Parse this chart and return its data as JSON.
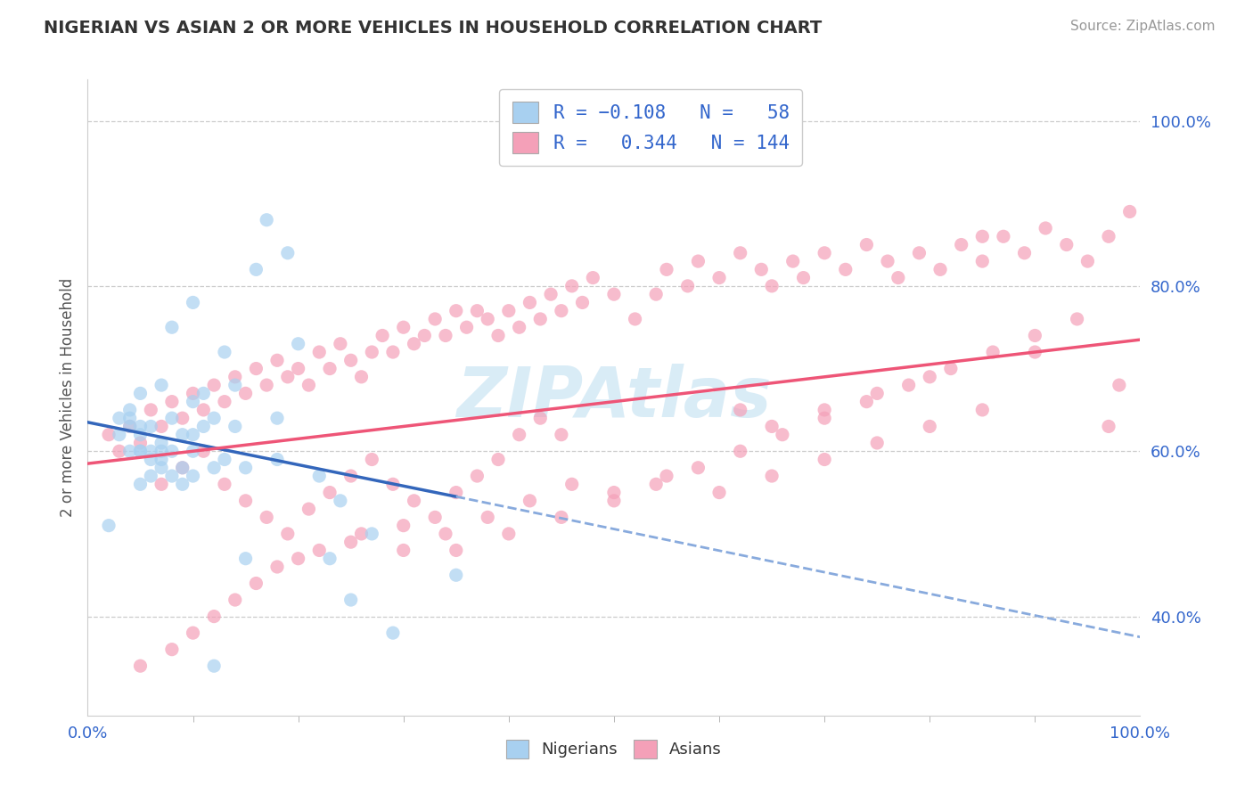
{
  "title": "NIGERIAN VS ASIAN 2 OR MORE VEHICLES IN HOUSEHOLD CORRELATION CHART",
  "source_text": "Source: ZipAtlas.com",
  "ylabel": "2 or more Vehicles in Household",
  "xlim": [
    0.0,
    1.0
  ],
  "ylim": [
    0.28,
    1.05
  ],
  "xtick_labels": [
    "0.0%",
    "100.0%"
  ],
  "ytick_labels": [
    "40.0%",
    "60.0%",
    "80.0%",
    "100.0%"
  ],
  "ytick_positions": [
    0.4,
    0.6,
    0.8,
    1.0
  ],
  "color_nigerian": "#A8D0F0",
  "color_asian": "#F4A0B8",
  "color_nigerian_line_solid": "#3366BB",
  "color_nigerian_line_dash": "#88AADD",
  "color_asian_line": "#EE5577",
  "watermark_color": "#BBDDF0",
  "background_color": "#FFFFFF",
  "grid_color": "#CCCCCC",
  "title_color": "#333333",
  "axis_label_color": "#555555",
  "tick_color": "#3366CC",
  "nigerian_line_x0": 0.0,
  "nigerian_line_y0": 0.635,
  "nigerian_line_x1": 0.35,
  "nigerian_line_y1": 0.545,
  "nigerian_line_dash_x0": 0.35,
  "nigerian_line_dash_y0": 0.545,
  "nigerian_line_dash_x1": 1.0,
  "nigerian_line_dash_y1": 0.375,
  "asian_line_x0": 0.0,
  "asian_line_y0": 0.585,
  "asian_line_x1": 1.0,
  "asian_line_y1": 0.735,
  "nig_x": [
    0.02,
    0.03,
    0.03,
    0.04,
    0.04,
    0.04,
    0.04,
    0.05,
    0.05,
    0.05,
    0.05,
    0.05,
    0.05,
    0.06,
    0.06,
    0.06,
    0.06,
    0.07,
    0.07,
    0.07,
    0.07,
    0.07,
    0.08,
    0.08,
    0.08,
    0.09,
    0.09,
    0.09,
    0.1,
    0.1,
    0.1,
    0.1,
    0.11,
    0.11,
    0.12,
    0.12,
    0.13,
    0.13,
    0.14,
    0.14,
    0.15,
    0.15,
    0.16,
    0.17,
    0.18,
    0.18,
    0.19,
    0.2,
    0.22,
    0.23,
    0.24,
    0.25,
    0.27,
    0.29,
    0.35,
    0.08,
    0.1,
    0.12
  ],
  "nig_y": [
    0.51,
    0.62,
    0.64,
    0.6,
    0.63,
    0.64,
    0.65,
    0.56,
    0.6,
    0.6,
    0.62,
    0.63,
    0.67,
    0.57,
    0.59,
    0.6,
    0.63,
    0.58,
    0.59,
    0.6,
    0.61,
    0.68,
    0.57,
    0.6,
    0.64,
    0.56,
    0.58,
    0.62,
    0.57,
    0.6,
    0.62,
    0.66,
    0.63,
    0.67,
    0.58,
    0.64,
    0.59,
    0.72,
    0.63,
    0.68,
    0.47,
    0.58,
    0.82,
    0.88,
    0.59,
    0.64,
    0.84,
    0.73,
    0.57,
    0.47,
    0.54,
    0.42,
    0.5,
    0.38,
    0.45,
    0.75,
    0.78,
    0.34
  ],
  "asi_x": [
    0.02,
    0.03,
    0.04,
    0.05,
    0.06,
    0.07,
    0.08,
    0.09,
    0.1,
    0.11,
    0.12,
    0.13,
    0.14,
    0.15,
    0.16,
    0.17,
    0.18,
    0.19,
    0.2,
    0.21,
    0.22,
    0.23,
    0.24,
    0.25,
    0.26,
    0.27,
    0.28,
    0.29,
    0.3,
    0.31,
    0.32,
    0.33,
    0.34,
    0.35,
    0.36,
    0.37,
    0.38,
    0.39,
    0.4,
    0.41,
    0.42,
    0.43,
    0.44,
    0.45,
    0.46,
    0.47,
    0.48,
    0.5,
    0.52,
    0.54,
    0.55,
    0.57,
    0.58,
    0.6,
    0.62,
    0.64,
    0.65,
    0.67,
    0.68,
    0.7,
    0.72,
    0.74,
    0.76,
    0.77,
    0.79,
    0.81,
    0.83,
    0.85,
    0.87,
    0.89,
    0.91,
    0.93,
    0.95,
    0.97,
    0.99,
    0.07,
    0.09,
    0.11,
    0.13,
    0.15,
    0.17,
    0.19,
    0.21,
    0.23,
    0.25,
    0.27,
    0.29,
    0.31,
    0.33,
    0.35,
    0.37,
    0.39,
    0.41,
    0.43,
    0.45,
    0.2,
    0.25,
    0.3,
    0.35,
    0.4,
    0.45,
    0.5,
    0.55,
    0.6,
    0.65,
    0.7,
    0.75,
    0.8,
    0.85,
    0.05,
    0.08,
    0.1,
    0.12,
    0.14,
    0.16,
    0.18,
    0.22,
    0.26,
    0.3,
    0.34,
    0.38,
    0.42,
    0.46,
    0.5,
    0.54,
    0.58,
    0.62,
    0.66,
    0.7,
    0.74,
    0.78,
    0.82,
    0.86,
    0.9,
    0.94,
    0.98,
    0.97,
    0.62,
    0.65,
    0.7,
    0.75,
    0.8,
    0.85,
    0.9
  ],
  "asi_y": [
    0.62,
    0.6,
    0.63,
    0.61,
    0.65,
    0.63,
    0.66,
    0.64,
    0.67,
    0.65,
    0.68,
    0.66,
    0.69,
    0.67,
    0.7,
    0.68,
    0.71,
    0.69,
    0.7,
    0.68,
    0.72,
    0.7,
    0.73,
    0.71,
    0.69,
    0.72,
    0.74,
    0.72,
    0.75,
    0.73,
    0.74,
    0.76,
    0.74,
    0.77,
    0.75,
    0.77,
    0.76,
    0.74,
    0.77,
    0.75,
    0.78,
    0.76,
    0.79,
    0.77,
    0.8,
    0.78,
    0.81,
    0.79,
    0.76,
    0.79,
    0.82,
    0.8,
    0.83,
    0.81,
    0.84,
    0.82,
    0.8,
    0.83,
    0.81,
    0.84,
    0.82,
    0.85,
    0.83,
    0.81,
    0.84,
    0.82,
    0.85,
    0.83,
    0.86,
    0.84,
    0.87,
    0.85,
    0.83,
    0.86,
    0.89,
    0.56,
    0.58,
    0.6,
    0.56,
    0.54,
    0.52,
    0.5,
    0.53,
    0.55,
    0.57,
    0.59,
    0.56,
    0.54,
    0.52,
    0.55,
    0.57,
    0.59,
    0.62,
    0.64,
    0.62,
    0.47,
    0.49,
    0.51,
    0.48,
    0.5,
    0.52,
    0.55,
    0.57,
    0.55,
    0.57,
    0.59,
    0.61,
    0.63,
    0.65,
    0.34,
    0.36,
    0.38,
    0.4,
    0.42,
    0.44,
    0.46,
    0.48,
    0.5,
    0.48,
    0.5,
    0.52,
    0.54,
    0.56,
    0.54,
    0.56,
    0.58,
    0.6,
    0.62,
    0.64,
    0.66,
    0.68,
    0.7,
    0.72,
    0.74,
    0.76,
    0.68,
    0.63,
    0.65,
    0.63,
    0.65,
    0.67,
    0.69,
    0.86,
    0.72
  ]
}
